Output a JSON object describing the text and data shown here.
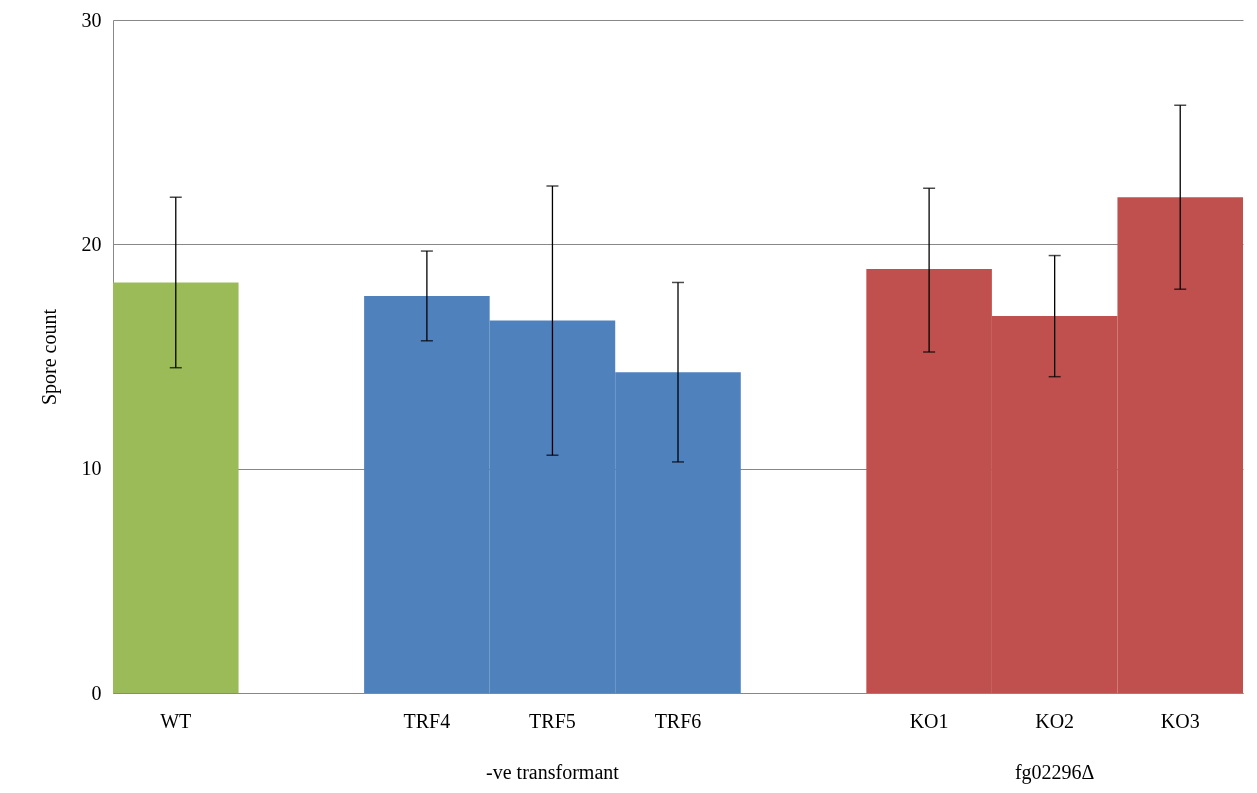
{
  "chart_data": {
    "type": "bar",
    "ylabel": "Spore count",
    "categories": [
      "WT",
      null,
      "TRF4",
      "TRF5",
      "TRF6",
      null,
      "KO1",
      "KO2",
      "KO3"
    ],
    "values": [
      18.3,
      null,
      17.7,
      16.6,
      14.3,
      null,
      18.9,
      16.8,
      22.1
    ],
    "errors": [
      [
        14.5,
        22.1
      ],
      null,
      [
        15.7,
        19.7
      ],
      [
        10.6,
        22.6
      ],
      [
        10.3,
        18.3
      ],
      null,
      [
        15.2,
        22.5
      ],
      [
        14.1,
        19.5
      ],
      [
        18.0,
        26.2
      ]
    ],
    "colors": [
      "#9bbb59",
      null,
      "#4f81bd",
      "#4f81bd",
      "#4f81bd",
      null,
      "#c0504d",
      "#c0504d",
      "#c0504d"
    ],
    "ylim": [
      0,
      30
    ],
    "yticks": [
      0,
      10,
      20,
      30
    ],
    "grid": "y",
    "annotations": [
      "-ve transformant",
      "fg02296Δ"
    ]
  }
}
